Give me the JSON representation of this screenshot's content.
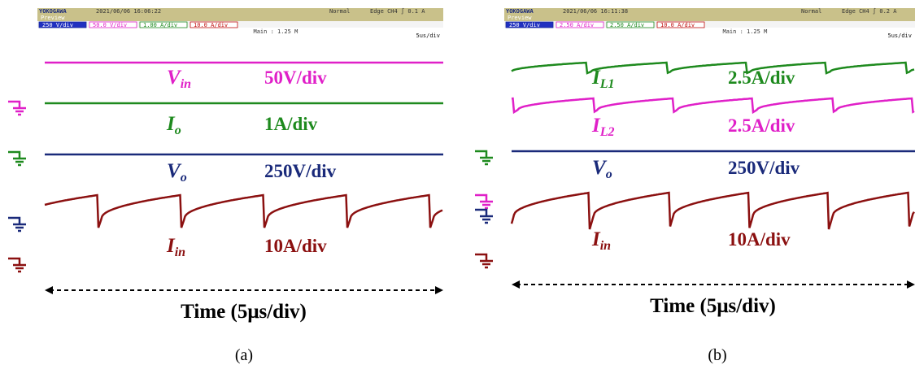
{
  "panels": [
    {
      "header": {
        "brand": "YOKOGAWA",
        "datetime": "2021/06/06 16:06:22",
        "mode": "Normal",
        "trigger": "Edge CH4 ∫ 0.1 A",
        "preview": "Preview",
        "channels": [
          "250 V/div",
          "50.0 V/div",
          "1.00 A/div",
          "10.0 A/div"
        ],
        "zoom": "Main : 1.25 M",
        "timebase": "5us/div"
      },
      "traces": [
        {
          "symbol": "V",
          "sub": "in",
          "scale": "50V/div",
          "color": "#e020c8"
        },
        {
          "symbol": "I",
          "sub": "o",
          "scale": "1A/div",
          "color": "#1e8a1e"
        },
        {
          "symbol": "V",
          "sub": "o",
          "scale": "250V/div",
          "color": "#1a2a7a"
        },
        {
          "symbol": "I",
          "sub": "in",
          "scale": "10A/div",
          "color": "#8b1010"
        }
      ],
      "axis_label": "Time (5μs/div)",
      "caption": "(a)"
    },
    {
      "header": {
        "brand": "YOKOGAWA",
        "datetime": "2021/06/06 16:11:38",
        "mode": "Normal",
        "trigger": "Edge CH4 ∫ 0.2 A",
        "preview": "Preview",
        "channels": [
          "250 V/div",
          "2.50 A/div",
          "2.50 A/div",
          "10.0 A/div"
        ],
        "zoom": "Main : 1.25 M",
        "timebase": "5us/div"
      },
      "traces": [
        {
          "symbol": "I",
          "sub": "L1",
          "scale": "2.5A/div",
          "color": "#1e8a1e"
        },
        {
          "symbol": "I",
          "sub": "L2",
          "scale": "2.5A/div",
          "color": "#e020c8"
        },
        {
          "symbol": "V",
          "sub": "o",
          "scale": "250V/div",
          "color": "#1a2a7a"
        },
        {
          "symbol": "I",
          "sub": "in",
          "scale": "10A/div",
          "color": "#8b1010"
        }
      ],
      "axis_label": "Time (5μs/div)",
      "caption": "(b)"
    }
  ]
}
